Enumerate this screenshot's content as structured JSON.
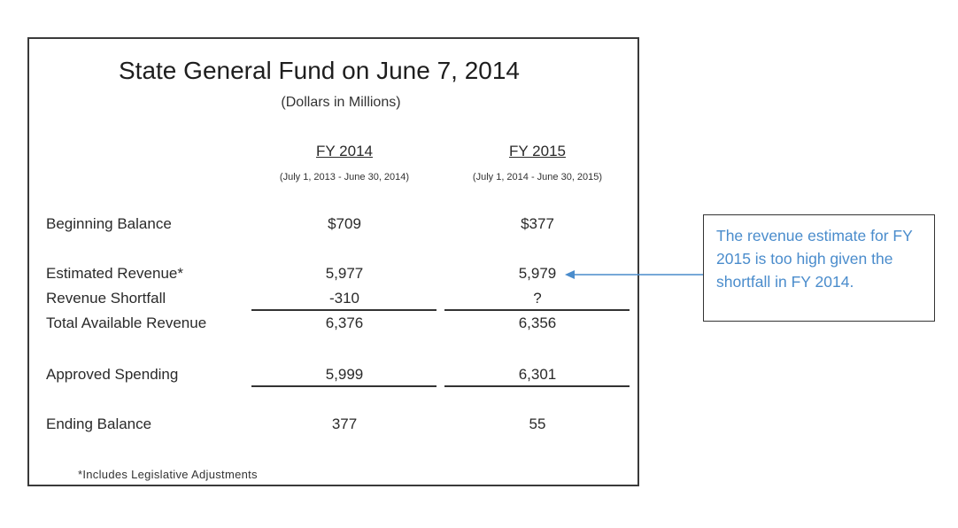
{
  "table": {
    "title": "State General Fund on June 7, 2014",
    "subtitle": "(Dollars in Millions)",
    "columns": [
      {
        "header": "FY 2014",
        "period": "(July 1, 2013 - June 30, 2014)"
      },
      {
        "header": "FY 2015",
        "period": "(July 1, 2014 - June 30, 2015)"
      }
    ],
    "rows": [
      {
        "label": "Beginning Balance",
        "fy2014": "$709",
        "fy2015": "$377"
      },
      {
        "label": "Estimated Revenue*",
        "fy2014": "5,977",
        "fy2015": "5,979"
      },
      {
        "label": "Revenue Shortfall",
        "fy2014": "-310",
        "fy2015": "?"
      },
      {
        "label": "Total Available Revenue",
        "fy2014": "6,376",
        "fy2015": "6,356"
      },
      {
        "label": "Approved Spending",
        "fy2014": "5,999",
        "fy2015": "6,301"
      },
      {
        "label": "Ending Balance",
        "fy2014": "377",
        "fy2015": "55"
      }
    ],
    "footnote": "*Includes Legislative Adjustments"
  },
  "callout": {
    "text": "The revenue estimate for FY 2015 is too high given the shortfall in FY 2014.",
    "color": "#4a8ccc"
  }
}
